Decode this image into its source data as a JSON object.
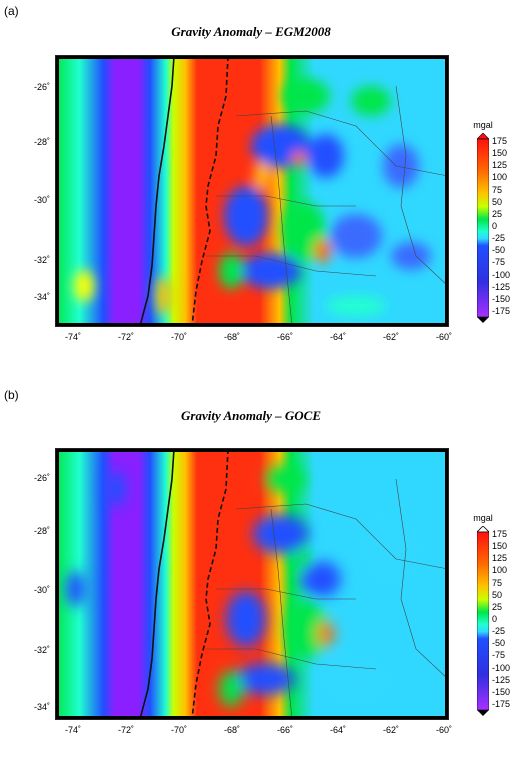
{
  "panels": [
    {
      "letter": "(a)",
      "title": "Gravity Anomaly – EGM2008"
    },
    {
      "letter": "(b)",
      "title": "Gravity Anomaly – GOCE"
    }
  ],
  "axes": {
    "x_ticks": [
      "-74˚",
      "-72˚",
      "-70˚",
      "-68˚",
      "-66˚",
      "-64˚",
      "-62˚",
      "-60˚"
    ],
    "y_ticks": [
      "-26˚",
      "-28˚",
      "-30˚",
      "-32˚",
      "-34˚"
    ]
  },
  "colorbar": {
    "unit": "mgal",
    "ticks": [
      "175",
      "150",
      "125",
      "100",
      "75",
      "50",
      "25",
      "0",
      "-25",
      "-50",
      "-75",
      "-100",
      "-125",
      "-150",
      "-175"
    ],
    "colors": [
      "#ff1010",
      "#ff6a00",
      "#ffc000",
      "#c8ff00",
      "#00e64a",
      "#20ffd0",
      "#30d8ff",
      "#2050ff",
      "#3030e0",
      "#8a20ff",
      "#a830ff"
    ]
  }
}
